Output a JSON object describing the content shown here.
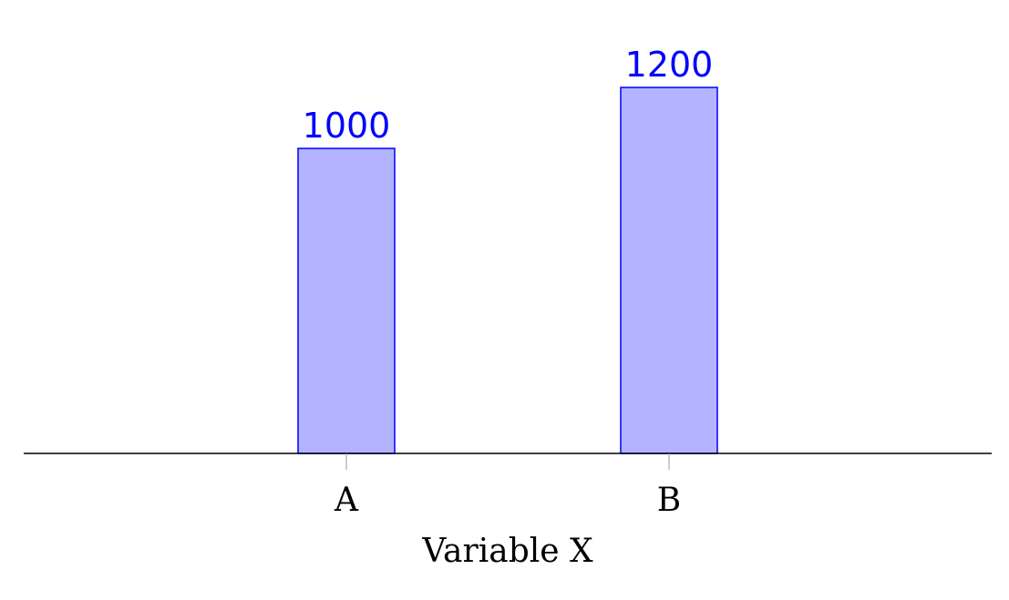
{
  "chart_data": {
    "type": "bar",
    "categories": [
      "A",
      "B"
    ],
    "values": [
      1000,
      1200
    ],
    "title": "",
    "xlabel": "Variable X",
    "ylabel": "",
    "ylim": [
      0,
      1300
    ],
    "grid": false,
    "show_data_labels": true,
    "bar_fill_color": "#b3b3ff",
    "bar_edge_color": "#0000ff",
    "data_label_color": "#0000ff"
  }
}
